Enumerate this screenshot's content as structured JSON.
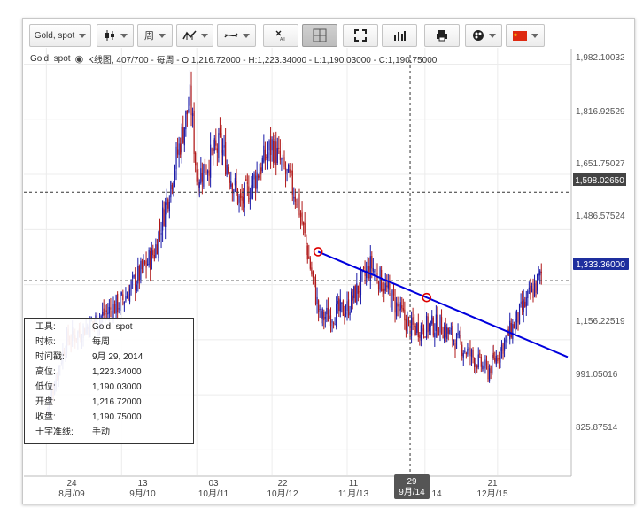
{
  "toolbar": {
    "instrument_label": "Gold, spot",
    "period_label": "周"
  },
  "info_bar": {
    "instrument": "Gold, spot",
    "details": "K线图, 407/700 - 每周 - O:1,216.72000 - H:1,223.34000 - L:1,190.03000 - C:1,190.75000"
  },
  "y_axis": {
    "ticks": [
      "1,982.10032",
      "1,816.92529",
      "1,651.75027",
      "1,486.57524",
      "1,156.22519",
      "991.05016",
      "825.87514"
    ],
    "hline_label": "1,598.02650",
    "price_label": "1,333.36000"
  },
  "x_axis": {
    "ticks": [
      {
        "day": "24",
        "month": "8月/09"
      },
      {
        "day": "13",
        "month": "9月/10"
      },
      {
        "day": "03",
        "month": "10月/11"
      },
      {
        "day": "22",
        "month": "10月/12"
      },
      {
        "day": "11",
        "month": "11月/13"
      },
      {
        "day": "14",
        "month": ""
      },
      {
        "day": "21",
        "month": "12月/15"
      }
    ],
    "crosshair_day": "29",
    "crosshair_month": "9月/14"
  },
  "tooltip": {
    "rows": [
      {
        "k": "工具:",
        "v": "Gold, spot"
      },
      {
        "k": "时标:",
        "v": "每周"
      },
      {
        "k": "时间戳:",
        "v": "9月 29, 2014"
      },
      {
        "k": "高位:",
        "v": "1,223.34000"
      },
      {
        "k": "低位:",
        "v": "1,190.03000"
      },
      {
        "k": "开盘:",
        "v": "1,216.72000"
      },
      {
        "k": "收盘:",
        "v": "1,190.75000"
      },
      {
        "k": "十字准线:",
        "v": "手动"
      }
    ]
  },
  "colors": {
    "bull": "#1a1aa8",
    "bear": "#b01818",
    "trendline": "#0000dd",
    "marker": "#dd0000",
    "price_label_bg": "#1e2f9e",
    "hline_label_bg": "#444444",
    "crosshair_label_bg": "#555555"
  },
  "chart_data": {
    "type": "candlestick",
    "instrument": "Gold, spot",
    "timeframe": "每周",
    "ylim": [
      750,
      2010
    ],
    "close_path": [
      {
        "x": "2009-08-24",
        "y": 940
      },
      {
        "x": "2009-12-01",
        "y": 1150
      },
      {
        "x": "2010-09-13",
        "y": 1270
      },
      {
        "x": "2011-03-01",
        "y": 1420
      },
      {
        "x": "2011-09-01",
        "y": 1880
      },
      {
        "x": "2011-10-03",
        "y": 1640
      },
      {
        "x": "2012-02-01",
        "y": 1740
      },
      {
        "x": "2012-05-15",
        "y": 1560
      },
      {
        "x": "2012-10-22",
        "y": 1740
      },
      {
        "x": "2013-03-01",
        "y": 1580
      },
      {
        "x": "2013-06-25",
        "y": 1220
      },
      {
        "x": "2013-11-11",
        "y": 1250
      },
      {
        "x": "2014-03-14",
        "y": 1380
      },
      {
        "x": "2014-09-29",
        "y": 1190
      },
      {
        "x": "2015-03-01",
        "y": 1200
      },
      {
        "x": "2015-11-01",
        "y": 1060
      },
      {
        "x": "2016-08-01",
        "y": 1350
      }
    ],
    "crosshair": {
      "x": "2014-09-29",
      "y": 1333.36
    },
    "horizontal_line": 1598.0265,
    "trendline": {
      "from": {
        "x": "2013-06-15",
        "y": 1420
      },
      "to": {
        "x": "2016-11-01",
        "y": 1115
      }
    },
    "tooltip_bar": {
      "time": "2014-09-29",
      "open": 1216.72,
      "high": 1223.34,
      "low": 1190.03,
      "close": 1190.75
    }
  }
}
